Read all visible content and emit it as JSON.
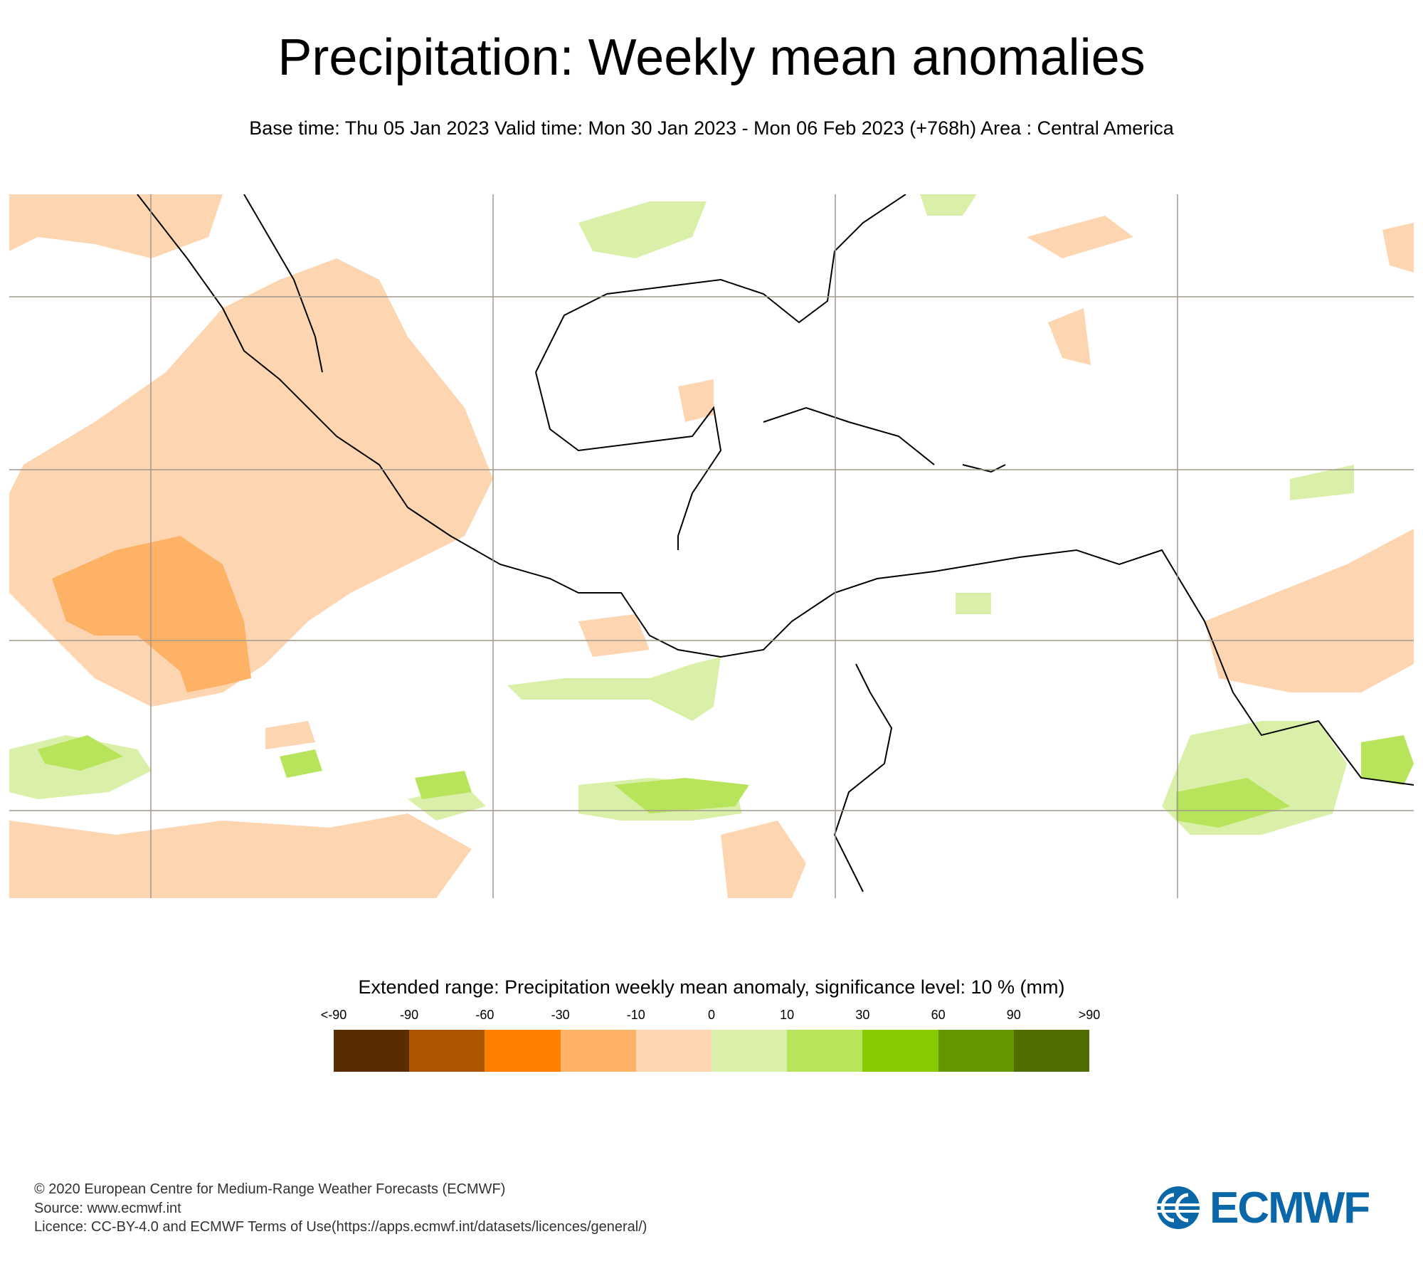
{
  "header": {
    "title": "Precipitation: Weekly mean anomalies",
    "subtitle": "Base time: Thu 05 Jan 2023 Valid time: Mon 30 Jan 2023 - Mon 06 Feb 2023 (+768h) Area : Central America"
  },
  "legend": {
    "title": "Extended range: Precipitation weekly mean anomaly, significance level: 10 % (mm)",
    "ticks": [
      "<-90",
      "-90",
      "-60",
      "-30",
      "-10",
      "0",
      "10",
      "30",
      "60",
      "90",
      ">90"
    ],
    "colors": [
      "#5a2d00",
      "#ad5600",
      "#ff7f00",
      "#fdb266",
      "#fed5b1",
      "#daf0a8",
      "#b8e45b",
      "#89cb00",
      "#659700",
      "#4f6d00"
    ]
  },
  "footer": {
    "copyright": "© 2020 European Centre for Medium-Range Weather Forecasts (ECMWF)",
    "source": "Source: www.ecmwf.int",
    "licence": "Licence: CC-BY-4.0 and ECMWF Terms of Use(https://apps.ecmwf.int/datasets/licences/general/)",
    "logo_text": "ECMWF"
  }
}
